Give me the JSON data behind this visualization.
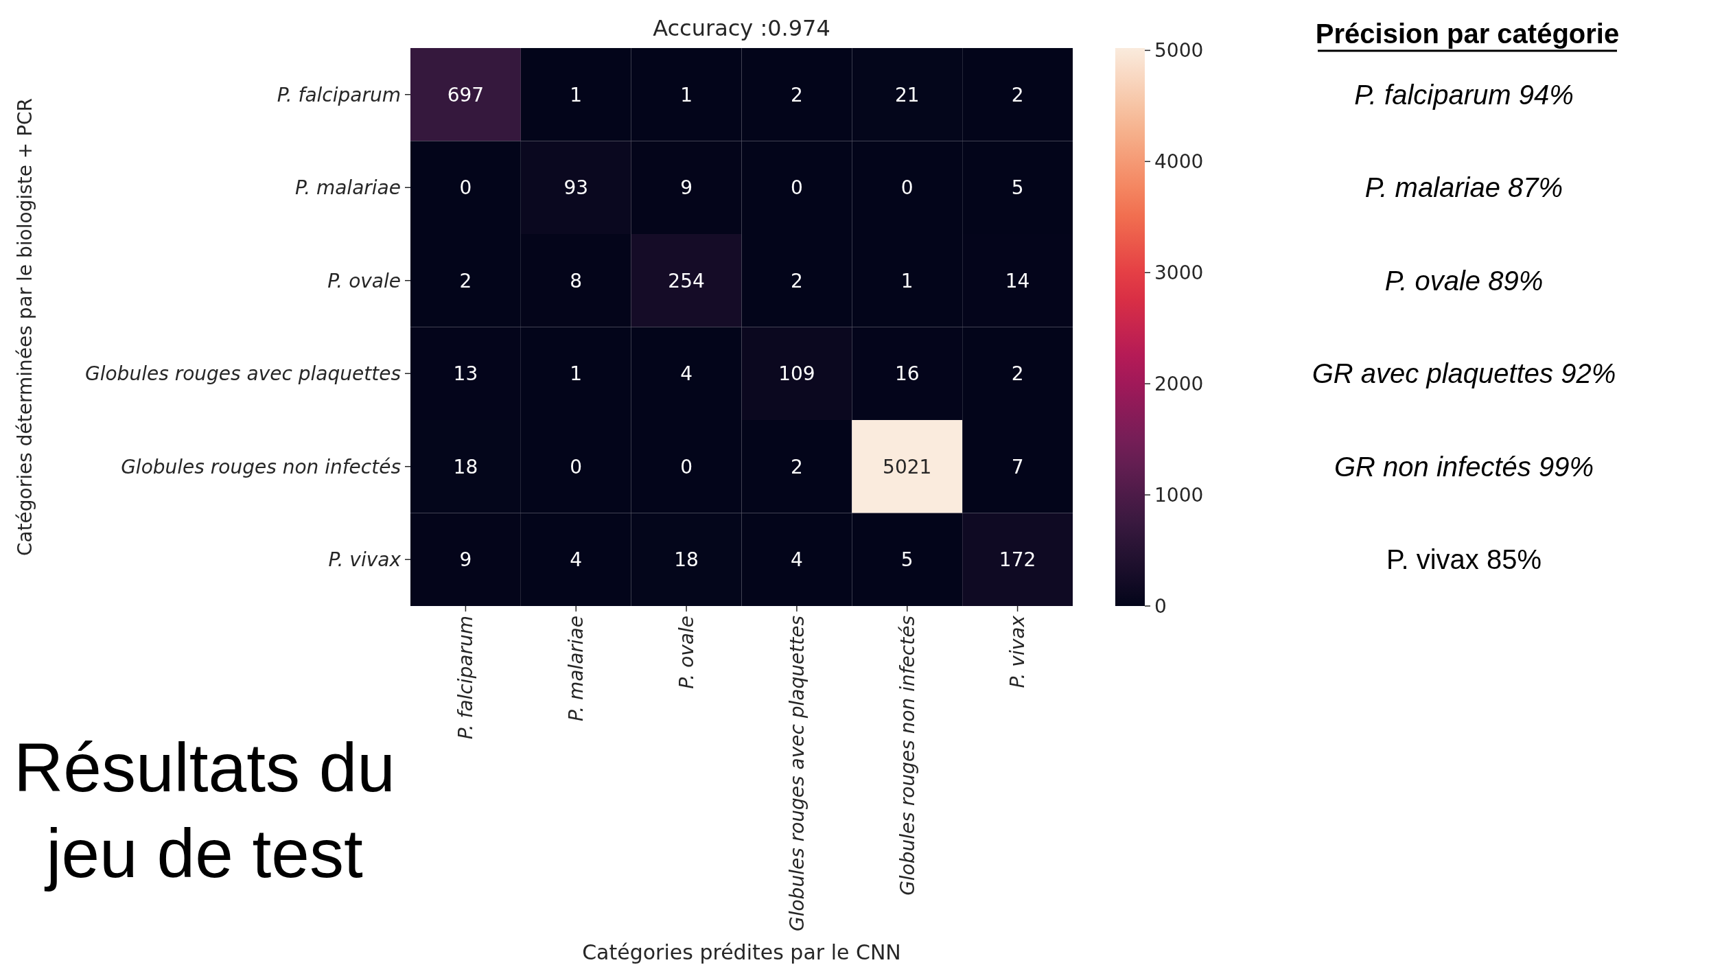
{
  "chart_data": {
    "type": "heatmap",
    "title": "Accuracy :0.974",
    "xlabel": "Catégories prédites par le CNN",
    "ylabel": "Catégories déterminées par le biologiste + PCR",
    "categories": [
      "P. falciparum",
      "P. malariae",
      "P. ovale",
      "Globules rouges avec plaquettes",
      "Globules rouges non infectés",
      "P. vivax"
    ],
    "y_categories": [
      "P. falciparum",
      "P. malariae",
      "P. ovale",
      "Globules rouges avec plaquettes",
      "Globules rouges non infectés",
      "P. vivax"
    ],
    "cells": [
      [
        697,
        1,
        1,
        2,
        21,
        2
      ],
      [
        0,
        93,
        9,
        0,
        0,
        5
      ],
      [
        2,
        8,
        254,
        2,
        1,
        14
      ],
      [
        13,
        1,
        4,
        109,
        16,
        2
      ],
      [
        18,
        0,
        0,
        2,
        5021,
        7
      ],
      [
        9,
        4,
        18,
        4,
        5,
        172
      ]
    ],
    "clim": [
      0,
      5021
    ],
    "cticks": [
      0,
      1000,
      2000,
      3000,
      4000,
      5000
    ],
    "data_labels": true,
    "annotations": [
      "Précision par catégorie",
      "P. falciparum 94%",
      "P. malariae 87%",
      "P. ovale 89%",
      "GR avec plaquettes 92%",
      "GR non infectés 99%",
      "P. vivax 85%",
      "Résultats du jeu de test"
    ]
  }
}
